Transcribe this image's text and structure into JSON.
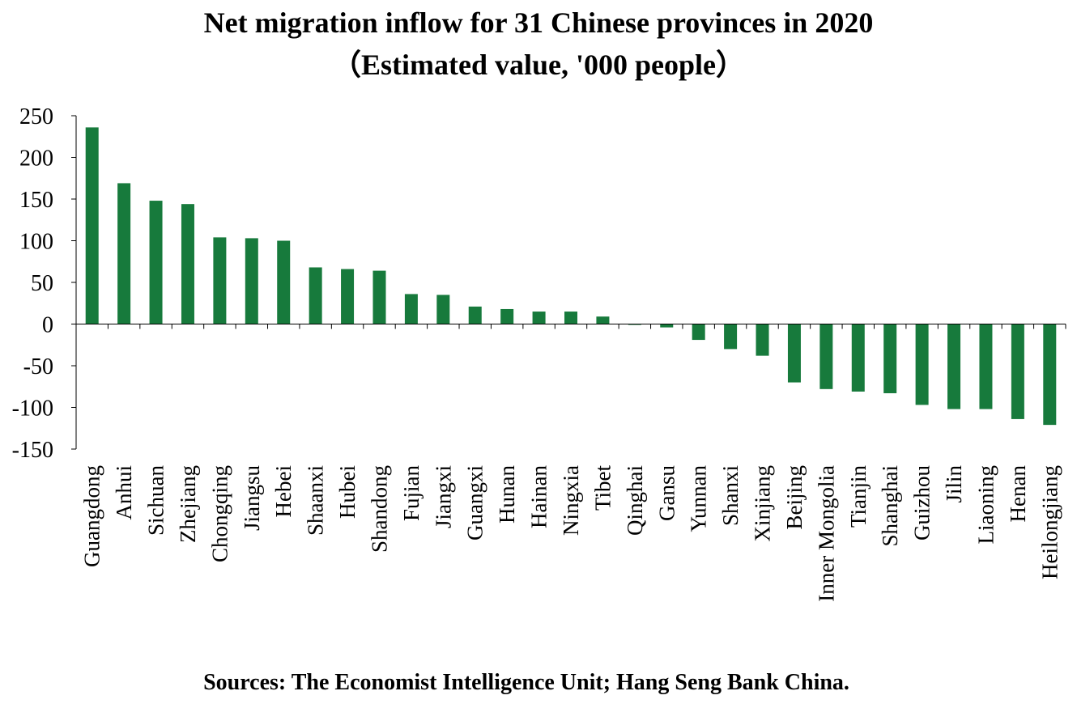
{
  "chart_data": {
    "type": "bar",
    "title": "Net migration inflow for 31 Chinese provinces in 2020",
    "subtitle": "（Estimated value, '000 people）",
    "xlabel": "",
    "ylabel": "",
    "ylim": [
      -150,
      250
    ],
    "yticks": [
      250,
      200,
      150,
      100,
      50,
      0,
      -50,
      -100,
      -150
    ],
    "grid": false,
    "bar_color": "#177a3c",
    "categories": [
      "Guangdong",
      "Anhui",
      "Sichuan",
      "Zhejiang",
      "Chongqing",
      "Jiangsu",
      "Hebei",
      "Shaanxi",
      "Hubei",
      "Shandong",
      "Fujian",
      "Jiangxi",
      "Guangxi",
      "Hunan",
      "Hainan",
      "Ningxia",
      "Tibet",
      "Qinghai",
      "Gansu",
      "Yunnan",
      "Shanxi",
      "Xinjiang",
      "Beijing",
      "Inner Mongolia",
      "Tianjin",
      "Shanghai",
      "Guizhou",
      "Jilin",
      "Liaoning",
      "Henan",
      "Heilongjiang"
    ],
    "values": [
      236,
      169,
      148,
      144,
      104,
      103,
      100,
      68,
      66,
      64,
      36,
      35,
      21,
      18,
      15,
      15,
      9,
      -1,
      -4,
      -19,
      -30,
      -38,
      -70,
      -78,
      -81,
      -83,
      -97,
      -102,
      -102,
      -114,
      -121
    ]
  },
  "footer": {
    "source": "Sources: The Economist Intelligence  Unit; Hang Seng Bank China."
  }
}
